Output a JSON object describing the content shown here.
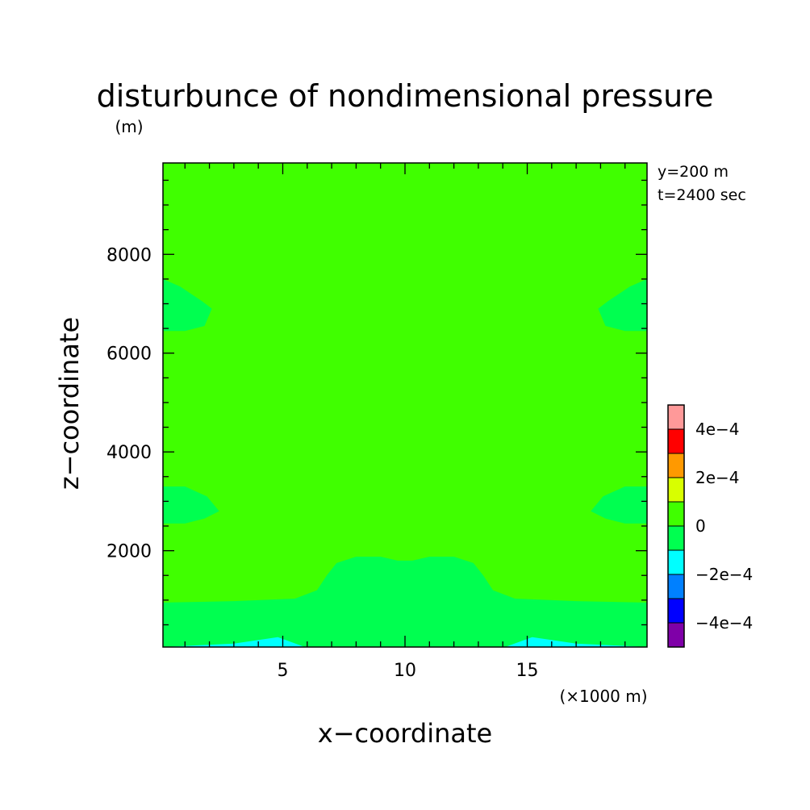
{
  "chart_data": {
    "type": "contour",
    "title": "disturbunce of nondimensional pressure",
    "ylabel": "z−coordinate",
    "y_unit": "(m)",
    "xlabel": "x−coordinate",
    "x_unit": "(×1000 m)",
    "info": [
      "y=200 m",
      "t=2400 sec"
    ],
    "xlim": [
      0.1,
      19.9
    ],
    "ylim": [
      50,
      9850
    ],
    "x_ticks": [
      5,
      10,
      15
    ],
    "y_ticks": [
      2000,
      4000,
      6000,
      8000
    ],
    "x_tick_labels": [
      "5",
      "10",
      "15"
    ],
    "y_tick_labels": [
      "2000",
      "4000",
      "6000",
      "8000"
    ],
    "colorbar": {
      "levels": [
        -0.0005,
        -0.0004,
        -0.0003,
        -0.0002,
        -0.0001,
        0,
        0.0001,
        0.0002,
        0.0003,
        0.0004,
        0.0005
      ],
      "colors": [
        "#7f00a8",
        "#0000ff",
        "#0080ff",
        "#00ffff",
        "#00ff50",
        "#40ff00",
        "#d8ff00",
        "#ff9900",
        "#ff0000",
        "#ff9999"
      ],
      "labels": [
        {
          "text": "4e−4",
          "value": 0.0004
        },
        {
          "text": "2e−4",
          "value": 0.0002
        },
        {
          "text": "0",
          "value": 0
        },
        {
          "text": "−2e−4",
          "value": -0.0002
        },
        {
          "text": "−4e−4",
          "value": -0.0004
        }
      ]
    },
    "background_level_color": "#40ff00",
    "regions": [
      {
        "name": "low-band",
        "color": "#00ff50",
        "points": [
          [
            0.1,
            50
          ],
          [
            19.9,
            50
          ],
          [
            19.9,
            950
          ],
          [
            17,
            980
          ],
          [
            14.5,
            1030
          ],
          [
            13.6,
            1200
          ],
          [
            13.2,
            1500
          ],
          [
            12.8,
            1750
          ],
          [
            12,
            1880
          ],
          [
            11,
            1880
          ],
          [
            10.3,
            1800
          ],
          [
            9.7,
            1800
          ],
          [
            9,
            1880
          ],
          [
            8,
            1880
          ],
          [
            7.2,
            1750
          ],
          [
            6.8,
            1500
          ],
          [
            6.4,
            1200
          ],
          [
            5.5,
            1030
          ],
          [
            3,
            980
          ],
          [
            0.1,
            950
          ]
        ]
      },
      {
        "name": "bottom-cyan",
        "color": "#00ffff",
        "points": [
          [
            0.1,
            50
          ],
          [
            3,
            120
          ],
          [
            4.8,
            250
          ],
          [
            5.9,
            50
          ],
          [
            14.1,
            50
          ],
          [
            15.2,
            250
          ],
          [
            17,
            120
          ],
          [
            19.9,
            50
          ]
        ]
      },
      {
        "name": "left-mid-lobe",
        "color": "#00ff50",
        "points": [
          [
            0.1,
            3300
          ],
          [
            1,
            3300
          ],
          [
            1.9,
            3100
          ],
          [
            2.4,
            2800
          ],
          [
            1.8,
            2650
          ],
          [
            1,
            2550
          ],
          [
            0.1,
            2550
          ]
        ]
      },
      {
        "name": "right-mid-lobe",
        "color": "#00ff50",
        "points": [
          [
            19.9,
            3300
          ],
          [
            19,
            3300
          ],
          [
            18.1,
            3100
          ],
          [
            17.6,
            2800
          ],
          [
            18.2,
            2650
          ],
          [
            19,
            2550
          ],
          [
            19.9,
            2550
          ]
        ]
      },
      {
        "name": "left-upper-lobe",
        "color": "#00ff50",
        "points": [
          [
            0.1,
            7500
          ],
          [
            0.8,
            7350
          ],
          [
            1.7,
            7050
          ],
          [
            2.1,
            6900
          ],
          [
            1.8,
            6550
          ],
          [
            1,
            6450
          ],
          [
            0.1,
            6450
          ]
        ]
      },
      {
        "name": "right-upper-lobe",
        "color": "#00ff50",
        "points": [
          [
            19.9,
            7500
          ],
          [
            19.2,
            7350
          ],
          [
            18.3,
            7050
          ],
          [
            17.9,
            6900
          ],
          [
            18.2,
            6550
          ],
          [
            19,
            6450
          ],
          [
            19.9,
            6450
          ]
        ]
      }
    ]
  }
}
